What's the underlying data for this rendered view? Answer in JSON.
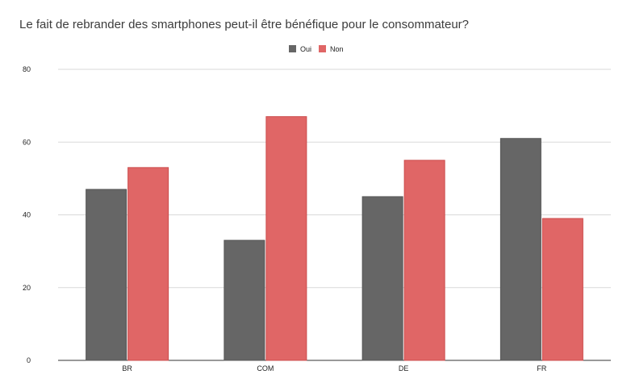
{
  "chart_data": {
    "type": "bar",
    "title": "Le fait de rebrander des smartphones peut-il être bénéfique pour le consommateur?",
    "categories": [
      "BR",
      "COM",
      "DE",
      "FR"
    ],
    "series": [
      {
        "name": "Oui",
        "values": [
          47,
          33,
          45,
          61
        ],
        "color": "#666666"
      },
      {
        "name": "Non",
        "values": [
          53,
          67,
          55,
          39
        ],
        "color": "#e06666"
      }
    ],
    "ylim": [
      0,
      80
    ],
    "yticks": [
      "0",
      "20",
      "40",
      "60",
      "80"
    ],
    "grid": true,
    "legend_position": "top-center"
  }
}
